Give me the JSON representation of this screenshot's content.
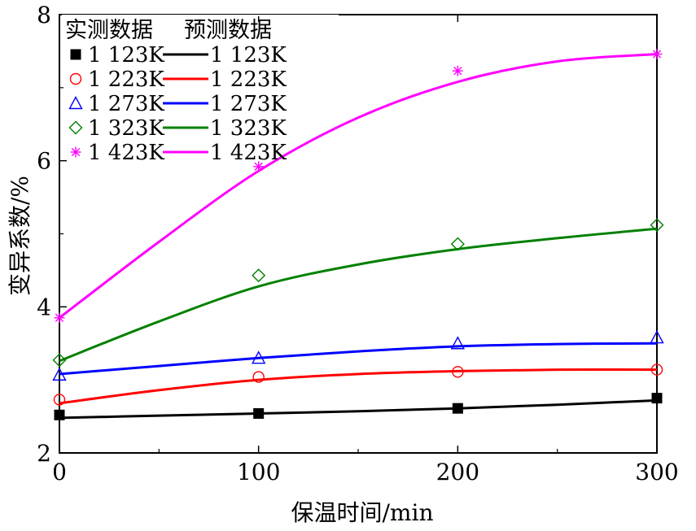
{
  "chart_data": {
    "type": "line",
    "xlabel": "保温时间/min",
    "ylabel": "变异系数/%",
    "xlim": [
      0,
      300
    ],
    "ylim": [
      2,
      8
    ],
    "x_ticks": [
      "0",
      "100",
      "200",
      "300"
    ],
    "y_ticks": [
      "2",
      "4",
      "6",
      "8"
    ],
    "grid": false,
    "legend_position": "top-left",
    "legend_headers": {
      "measured": "实测数据",
      "predicted": "预测数据"
    },
    "series": [
      {
        "name": "1 123K",
        "color": "#000000",
        "marker": "filled-square",
        "measured": {
          "x": [
            0,
            100,
            200,
            300
          ],
          "y": [
            2.52,
            2.54,
            2.61,
            2.75
          ]
        },
        "predicted": {
          "x": [
            0,
            50,
            100,
            150,
            200,
            250,
            300
          ],
          "y": [
            2.48,
            2.51,
            2.54,
            2.57,
            2.61,
            2.66,
            2.72
          ]
        }
      },
      {
        "name": "1 223K",
        "color": "#ff0000",
        "marker": "open-circle",
        "measured": {
          "x": [
            0,
            100,
            200,
            300
          ],
          "y": [
            2.73,
            3.04,
            3.11,
            3.14
          ]
        },
        "predicted": {
          "x": [
            0,
            50,
            100,
            150,
            200,
            250,
            300
          ],
          "y": [
            2.68,
            2.86,
            3.0,
            3.08,
            3.12,
            3.14,
            3.14
          ]
        }
      },
      {
        "name": "1 273K",
        "color": "#0000ff",
        "marker": "open-triangle",
        "measured": {
          "x": [
            0,
            100,
            200,
            300
          ],
          "y": [
            3.07,
            3.3,
            3.5,
            3.58
          ]
        },
        "predicted": {
          "x": [
            0,
            50,
            100,
            150,
            200,
            250,
            300
          ],
          "y": [
            3.08,
            3.19,
            3.3,
            3.39,
            3.46,
            3.49,
            3.5
          ]
        }
      },
      {
        "name": "1 323K",
        "color": "#008000",
        "marker": "open-diamond",
        "measured": {
          "x": [
            0,
            100,
            200,
            300
          ],
          "y": [
            3.27,
            4.43,
            4.86,
            5.12
          ]
        },
        "predicted": {
          "x": [
            0,
            50,
            100,
            150,
            200,
            250,
            300
          ],
          "y": [
            3.26,
            3.8,
            4.28,
            4.58,
            4.79,
            4.94,
            5.07
          ]
        }
      },
      {
        "name": "1 423K",
        "color": "#ff00ff",
        "marker": "asterisk",
        "measured": {
          "x": [
            0,
            100,
            200,
            300
          ],
          "y": [
            3.85,
            5.92,
            7.23,
            7.46
          ]
        },
        "predicted": {
          "x": [
            0,
            50,
            100,
            150,
            200,
            250,
            300
          ],
          "y": [
            3.85,
            4.89,
            5.86,
            6.59,
            7.08,
            7.36,
            7.46
          ]
        }
      }
    ]
  }
}
